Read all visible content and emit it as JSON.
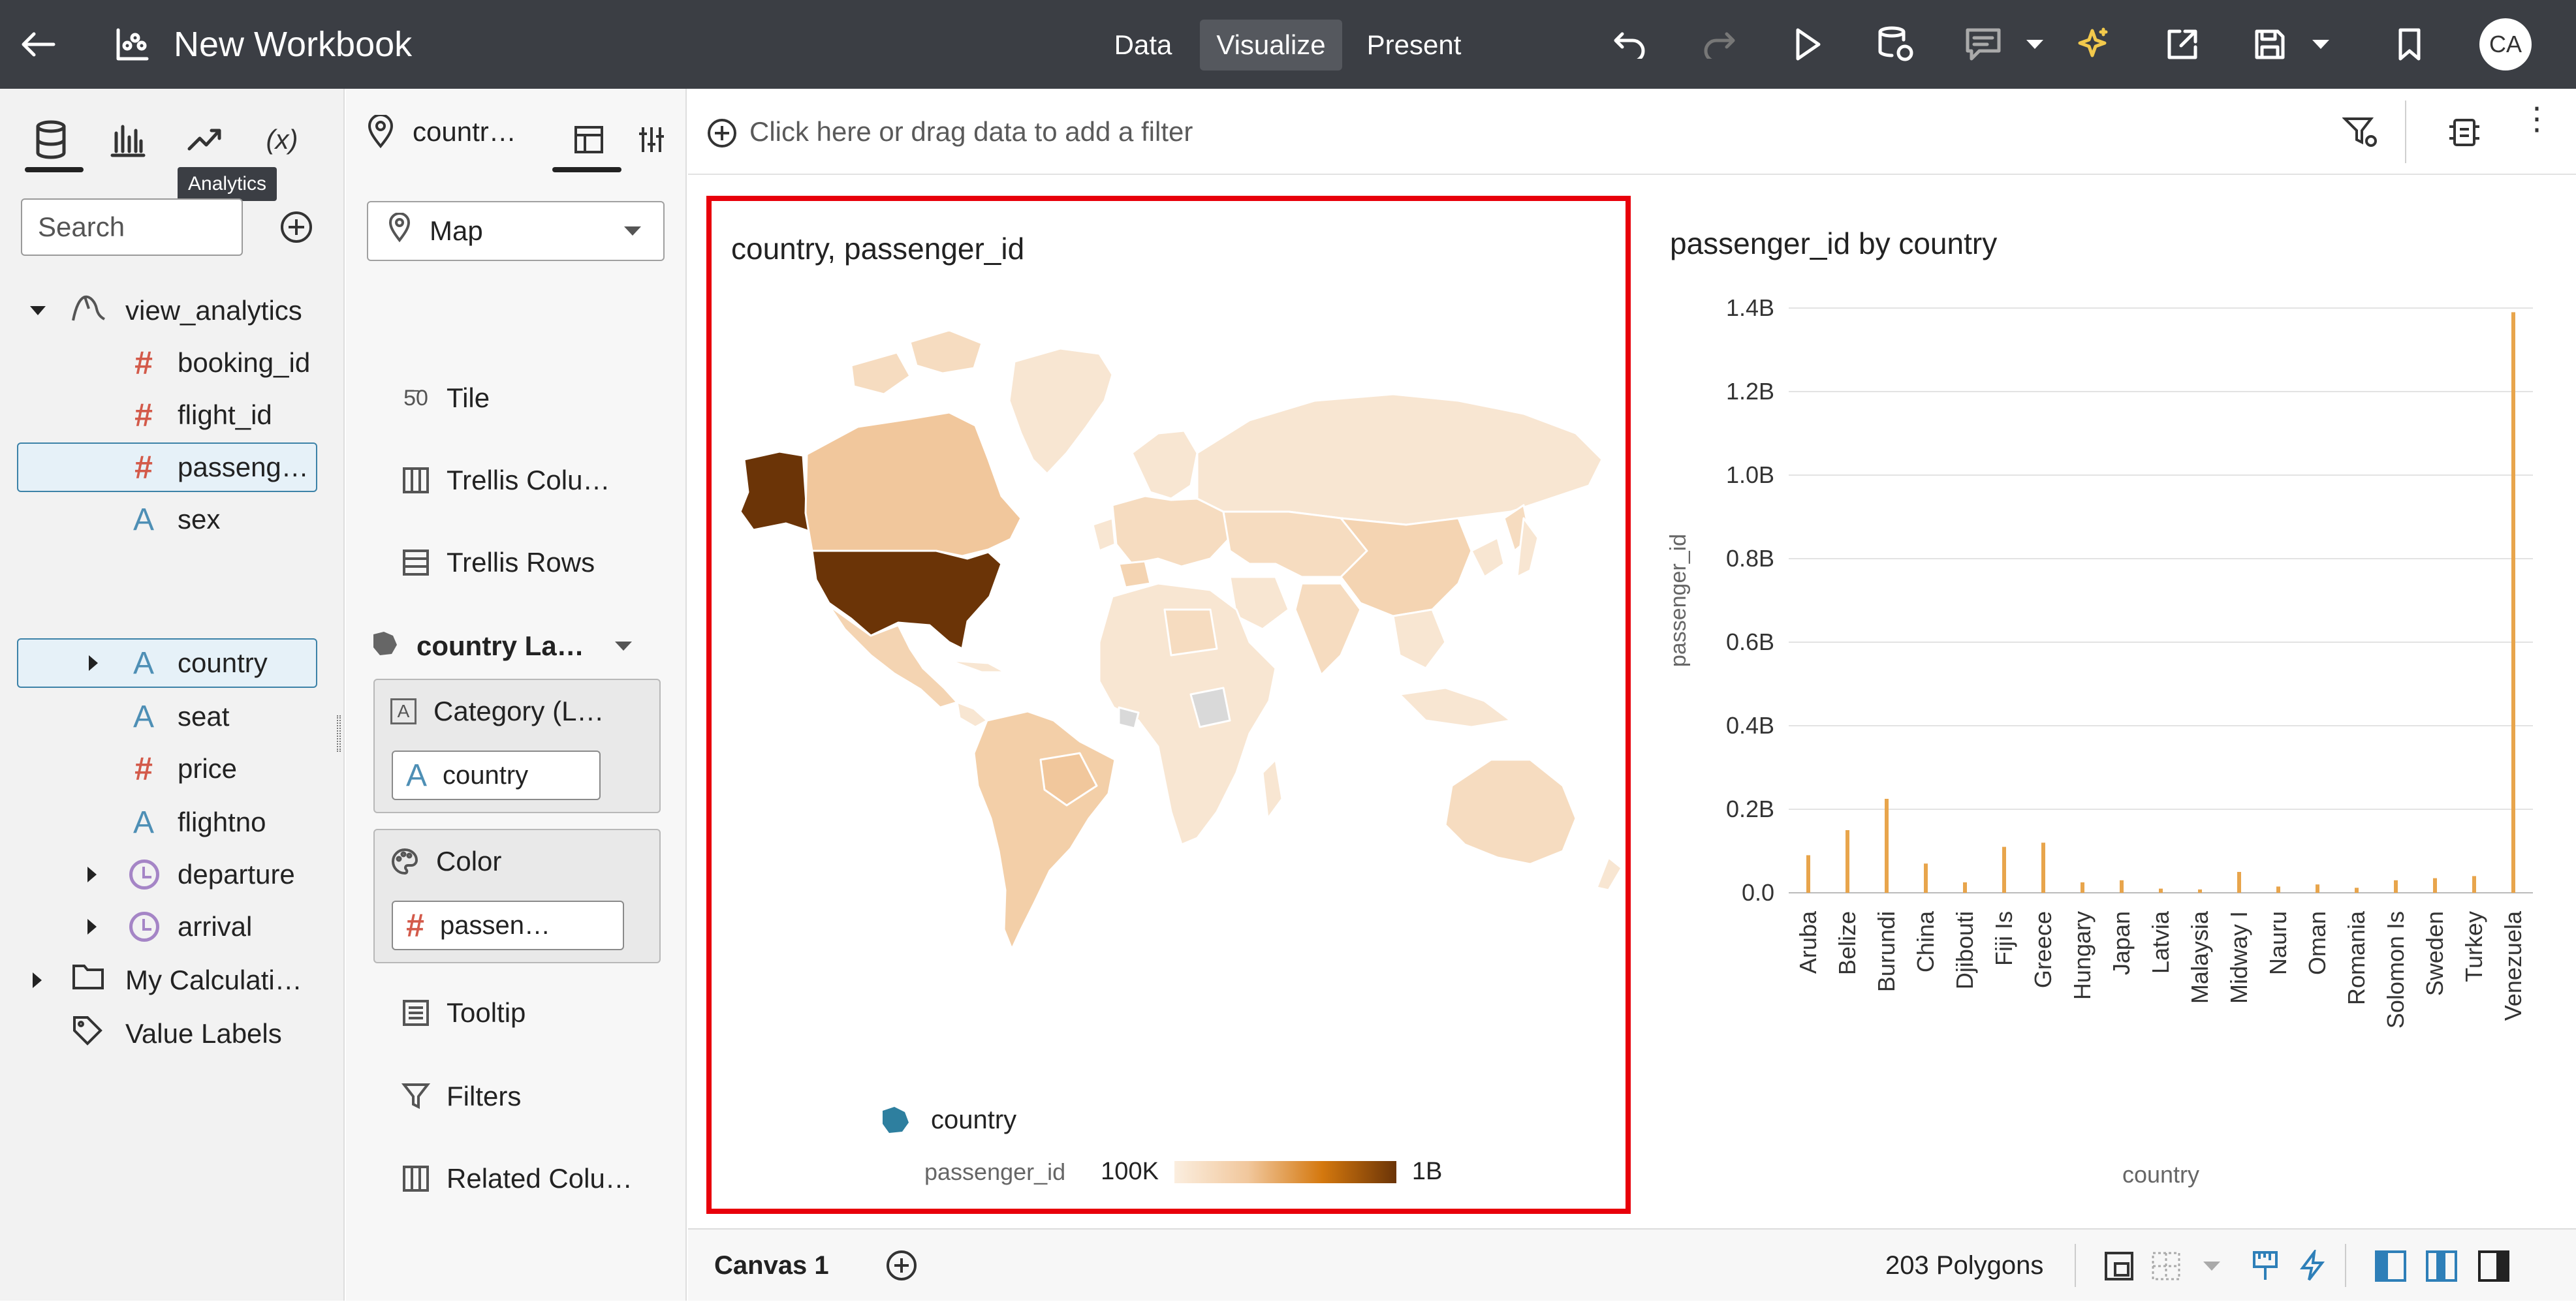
{
  "header": {
    "title": "New Workbook",
    "tabs": [
      {
        "label": "Data",
        "active": false
      },
      {
        "label": "Visualize",
        "active": true
      },
      {
        "label": "Present",
        "active": false
      }
    ],
    "user_initials": "CA",
    "icons": [
      "back-arrow-icon",
      "workbook-icon",
      "undo-icon",
      "redo-icon",
      "run-icon",
      "refresh-data-icon",
      "comment-icon",
      "auto-insights-icon",
      "export-icon",
      "save-icon",
      "bookmark-icon"
    ]
  },
  "data_panel": {
    "tabs": [
      "data-icon",
      "visualizations-icon",
      "analytics-icon",
      "calculation-icon"
    ],
    "tooltip": "Analytics",
    "search_placeholder": "Search",
    "tree": [
      {
        "label": "view_analytics",
        "type": "source",
        "expanded": true
      },
      {
        "label": "booking_id",
        "type": "measure"
      },
      {
        "label": "flight_id",
        "type": "measure"
      },
      {
        "label": "passeng…",
        "type": "measure",
        "selected": true
      },
      {
        "label": "sex",
        "type": "attribute"
      },
      {
        "label": "country",
        "type": "attribute",
        "selected": true,
        "collapsed": true
      },
      {
        "label": "seat",
        "type": "attribute"
      },
      {
        "label": "price",
        "type": "measure"
      },
      {
        "label": "flightno",
        "type": "attribute"
      },
      {
        "label": "departure",
        "type": "time",
        "collapsed": true
      },
      {
        "label": "arrival",
        "type": "time",
        "collapsed": true
      },
      {
        "label": "My Calculati…",
        "type": "folder",
        "collapsed": true
      },
      {
        "label": "Value Labels",
        "type": "tag"
      }
    ]
  },
  "grammar_panel": {
    "viz_name": "countr…",
    "viz_type": "Map",
    "rows": {
      "tile": "Tile",
      "trellis_columns": "Trellis Colu…",
      "trellis_rows": "Trellis Rows",
      "layer": "country La…",
      "category": "Category (L…",
      "category_value": "country",
      "color": "Color",
      "color_value": "passen…",
      "tooltip": "Tooltip",
      "filters": "Filters",
      "related": "Related Colu…"
    }
  },
  "filter_bar": {
    "placeholder": "Click here or drag data to add a filter"
  },
  "map_viz": {
    "title": "country, passenger_id",
    "legend_layer": "country",
    "legend_measure": "passenger_id",
    "legend_min": "100K",
    "legend_max": "1B",
    "colors": {
      "low": "#f8e6d2",
      "mid": "#f1c79c",
      "high": "#6b3407",
      "nodata": "#d9d9d9"
    }
  },
  "chart_data": {
    "type": "bar",
    "title": "passenger_id by country",
    "xlabel": "country",
    "ylabel": "passenger_id",
    "ylim": [
      0,
      1400000000
    ],
    "yticks": [
      "0.0",
      "0.2B",
      "0.4B",
      "0.6B",
      "0.8B",
      "1.0B",
      "1.2B",
      "1.4B"
    ],
    "categories": [
      "Aruba",
      "Belize",
      "Burundi",
      "China",
      "Djibouti",
      "Fiji Is",
      "Greece",
      "Hungary",
      "Japan",
      "Latvia",
      "Malaysia",
      "Midway I",
      "Nauru",
      "Oman",
      "Romania",
      "Solomon Is",
      "Sweden",
      "Turkey",
      "Venezuela"
    ],
    "values": [
      90000000,
      150000000,
      225000000,
      70000000,
      25000000,
      110000000,
      120000000,
      25000000,
      30000000,
      10000000,
      8000000,
      50000000,
      15000000,
      20000000,
      12000000,
      30000000,
      35000000,
      40000000,
      1390000000
    ],
    "bar_color": "#e8a54c",
    "grid": true
  },
  "bottom_bar": {
    "canvas_tab": "Canvas 1",
    "polygons": "203 Polygons"
  }
}
